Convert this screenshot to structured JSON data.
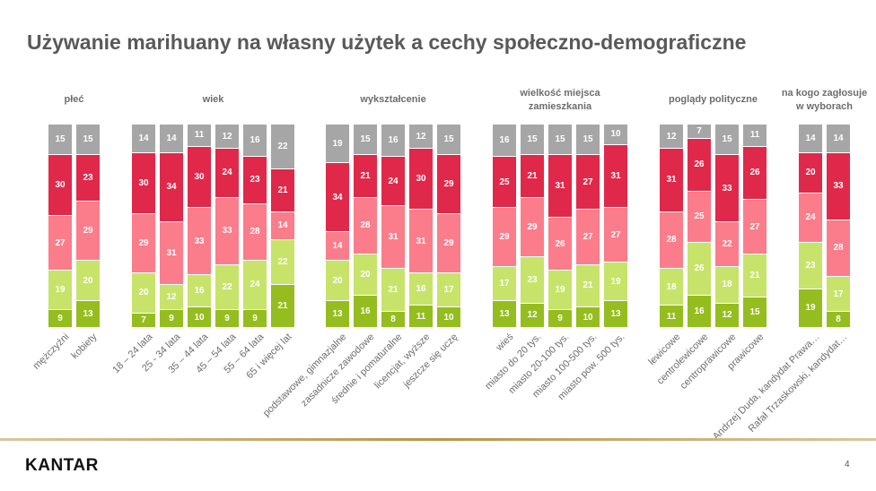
{
  "title": "Używanie marihuany na własny użytek a cechy społeczno-demograficzne",
  "footer": {
    "logo": "KANTAR",
    "page_number": "4"
  },
  "chart_data": {
    "type": "bar",
    "stacked": true,
    "percent": true,
    "segment_order": "bottom-to-top",
    "colors": [
      "#95bd1f",
      "#c8e36a",
      "#fb7d8b",
      "#e0294a",
      "#a6a6a6"
    ],
    "legend": "none",
    "grid": false,
    "groups": [
      {
        "heading": [
          "płeć"
        ],
        "categories": [
          "mężczyźni",
          "kobiety"
        ],
        "values": [
          [
            9,
            19,
            27,
            30,
            15
          ],
          [
            13,
            20,
            29,
            23,
            15
          ]
        ]
      },
      {
        "heading": [
          "wiek"
        ],
        "categories": [
          "18 – 24 lata",
          "25 - 34 lata",
          "35 – 44 lata",
          "45 – 54 lata",
          "55 – 64 lata",
          "65 i więcej lat"
        ],
        "values": [
          [
            7,
            20,
            29,
            30,
            14
          ],
          [
            9,
            12,
            31,
            34,
            14
          ],
          [
            10,
            16,
            33,
            30,
            11
          ],
          [
            9,
            22,
            33,
            24,
            12
          ],
          [
            9,
            24,
            28,
            23,
            16
          ],
          [
            21,
            22,
            14,
            21,
            22
          ]
        ]
      },
      {
        "heading": [
          "wykształcenie"
        ],
        "categories": [
          "podstawowe, gimnazjalne",
          "zasadnicze zawodowe",
          "średnie i pomaturalne",
          "licencjat, wyższe",
          "jeszcze się uczę"
        ],
        "values": [
          [
            13,
            20,
            14,
            34,
            19
          ],
          [
            16,
            20,
            28,
            21,
            15
          ],
          [
            8,
            21,
            31,
            24,
            16
          ],
          [
            11,
            16,
            31,
            30,
            12
          ],
          [
            10,
            17,
            29,
            29,
            15
          ]
        ]
      },
      {
        "heading": [
          "wielkość miejsca",
          "zamieszkania"
        ],
        "categories": [
          "wieś",
          "miasto do 20 tys.",
          "miasto 20-100 tys.",
          "miasto 100-500 tys.",
          "miasto pow. 500 tys."
        ],
        "values": [
          [
            13,
            17,
            29,
            25,
            16
          ],
          [
            12,
            23,
            29,
            21,
            15
          ],
          [
            9,
            19,
            26,
            31,
            15
          ],
          [
            10,
            21,
            27,
            27,
            15
          ],
          [
            13,
            19,
            27,
            31,
            10
          ]
        ]
      },
      {
        "heading": [
          "poglądy polityczne"
        ],
        "categories": [
          "lewicowe",
          "centrolewicowe",
          "centroprawicowe",
          "prawicowe"
        ],
        "values": [
          [
            11,
            18,
            28,
            31,
            12
          ],
          [
            16,
            26,
            25,
            26,
            7
          ],
          [
            12,
            18,
            22,
            33,
            15
          ],
          [
            15,
            21,
            27,
            26,
            11
          ]
        ]
      },
      {
        "heading": [
          "na kogo zagłosuje",
          "w wyborach"
        ],
        "categories": [
          "Andrzej Duda, kandydat Prawa…",
          "Rafał Trzaskowski, kandydat…"
        ],
        "values": [
          [
            19,
            23,
            24,
            20,
            14
          ],
          [
            8,
            17,
            28,
            33,
            14
          ]
        ]
      }
    ]
  }
}
